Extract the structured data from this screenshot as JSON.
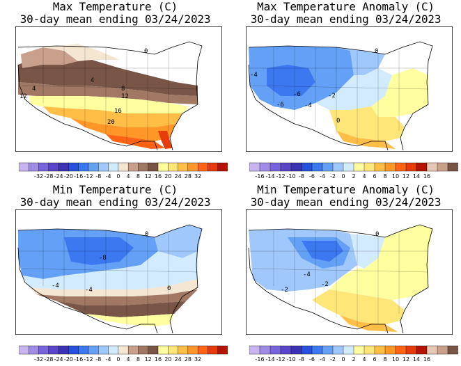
{
  "panels": [
    {
      "id": "max-temp",
      "title": "Max Temperature (C)",
      "subtitle": "30-day mean ending 03/24/2023",
      "scale": {
        "palette": "temperature",
        "labels": [
          "-32",
          "-28",
          "-24",
          "-20",
          "-16",
          "-12",
          "-8",
          "-4",
          "0",
          "4",
          "8",
          "12",
          "16",
          "20",
          "24",
          "28",
          "32"
        ]
      },
      "contour_labels": [
        "0",
        "4",
        "4",
        "8",
        "12",
        "12",
        "16",
        "20"
      ]
    },
    {
      "id": "max-anom",
      "title": "Max Temperature Anomaly (C)",
      "subtitle": "30-day mean ending 03/24/2023",
      "scale": {
        "palette": "anomaly",
        "labels": [
          "-16",
          "-14",
          "-12",
          "-10",
          "-8",
          "-6",
          "-4",
          "-2",
          "0",
          "2",
          "4",
          "6",
          "8",
          "10",
          "12",
          "14",
          "16"
        ]
      },
      "contour_labels": [
        "-4",
        "-6",
        "-6",
        "-4",
        "-2",
        "0",
        "0"
      ]
    },
    {
      "id": "min-temp",
      "title": "Min Temperature (C)",
      "subtitle": "30-day mean ending 03/24/2023",
      "scale": {
        "palette": "temperature",
        "labels": [
          "-32",
          "-28",
          "-24",
          "-20",
          "-16",
          "-12",
          "-8",
          "-4",
          "0",
          "4",
          "8",
          "12",
          "16",
          "20",
          "24",
          "28",
          "32"
        ]
      },
      "contour_labels": [
        "0",
        "-8",
        "-4",
        "-4",
        "0"
      ]
    },
    {
      "id": "min-anom",
      "title": "Min Temperature Anomaly (C)",
      "subtitle": "30-day mean ending 03/24/2023",
      "scale": {
        "palette": "anomaly",
        "labels": [
          "-16",
          "-14",
          "-12",
          "-10",
          "-8",
          "-6",
          "-4",
          "-2",
          "0",
          "2",
          "4",
          "6",
          "8",
          "10",
          "12",
          "14",
          "16"
        ]
      },
      "contour_labels": [
        "-2",
        "-4",
        "-2",
        "0"
      ]
    }
  ],
  "palettes": {
    "temperature": [
      "#c8b4f0",
      "#a08ce6",
      "#7864dc",
      "#5a46c8",
      "#3c32b4",
      "#2850dc",
      "#3c78f0",
      "#64a0f5",
      "#a0c8fa",
      "#d2ebff",
      "#f5e6d2",
      "#c8a08c",
      "#a07864",
      "#785546",
      "#ffffa0",
      "#ffe678",
      "#ffbe46",
      "#ff9628",
      "#ff6414",
      "#e63c0a",
      "#b41400"
    ],
    "anomaly": [
      "#c8b4f0",
      "#a08ce6",
      "#7864dc",
      "#5a46c8",
      "#3c32b4",
      "#2850dc",
      "#3c78f0",
      "#64a0f5",
      "#a0c8fa",
      "#d2ebff",
      "#ffffa0",
      "#ffe678",
      "#ffbe46",
      "#ff9628",
      "#ff6414",
      "#e63c0a",
      "#b41400",
      "#e6c8b4",
      "#c8a08c",
      "#785546"
    ]
  },
  "colors": {
    "land_default": "#ffffff",
    "water": "#ffffff",
    "border": "#000000"
  }
}
